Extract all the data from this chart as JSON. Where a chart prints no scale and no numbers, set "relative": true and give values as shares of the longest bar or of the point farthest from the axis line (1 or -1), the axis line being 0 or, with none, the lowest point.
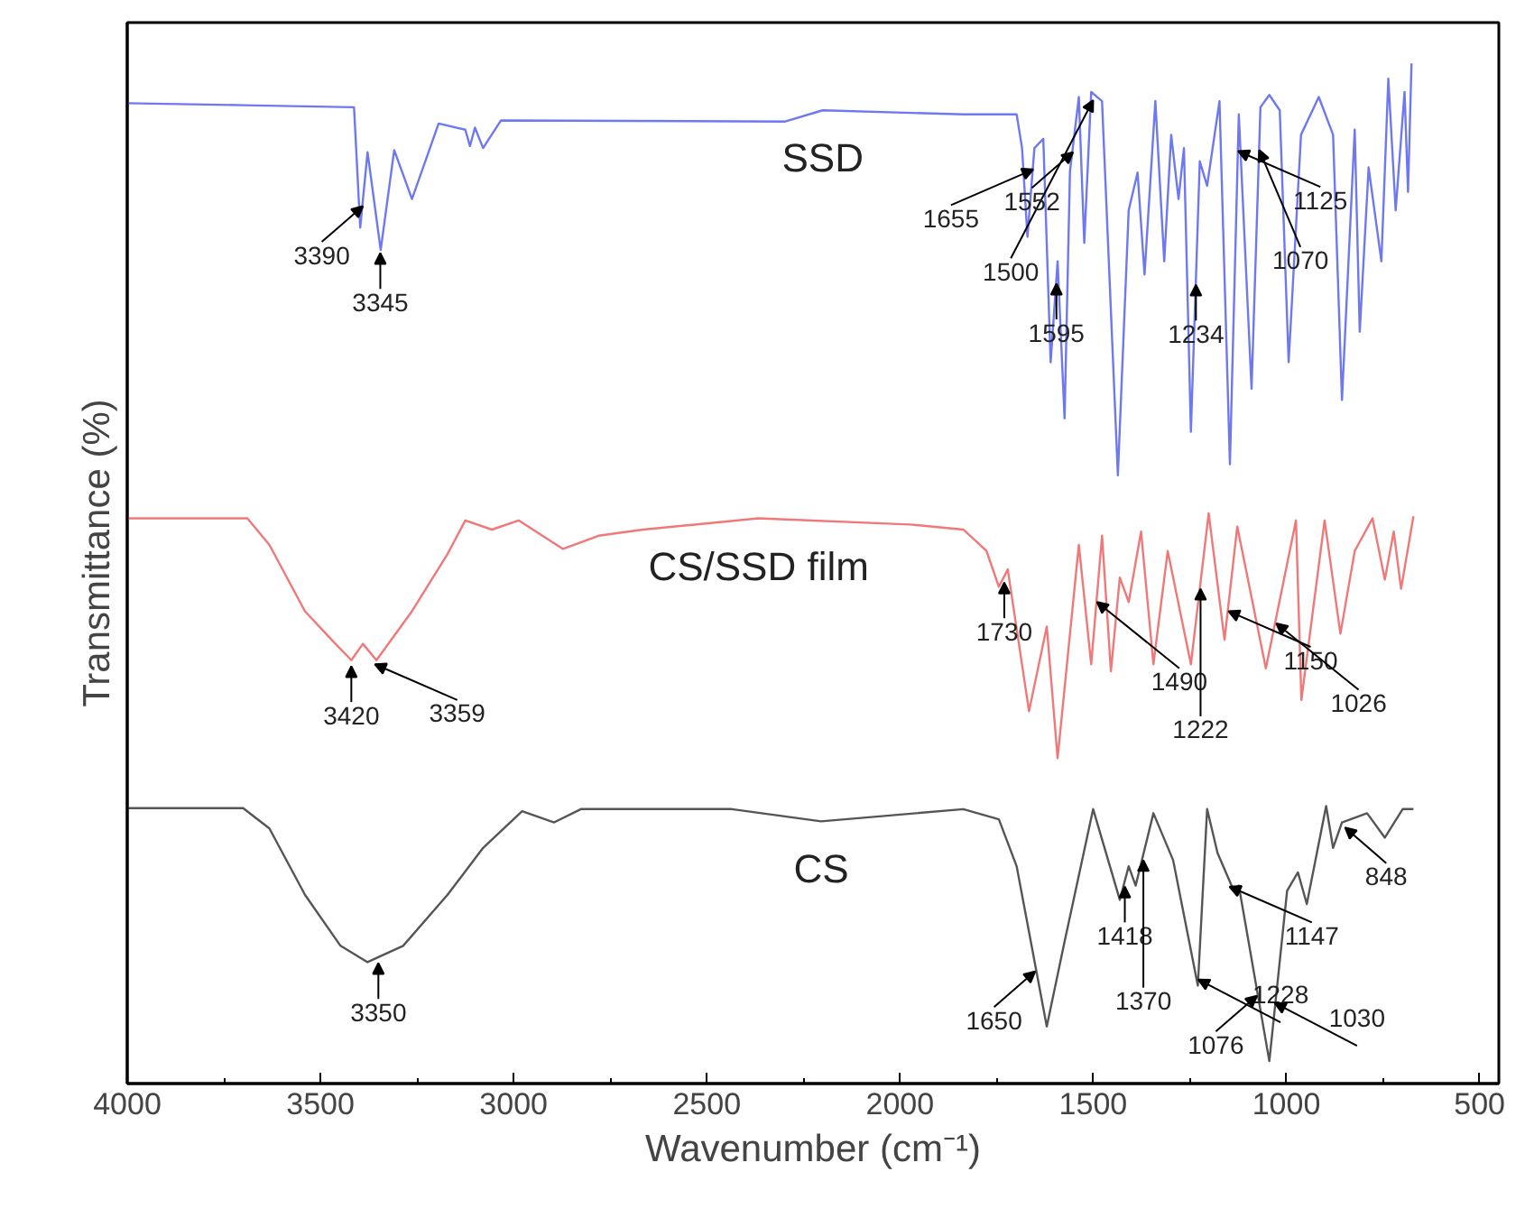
{
  "chart_data": {
    "type": "line",
    "relative": true,
    "xlabel": "Wavenumber (cm⁻¹)",
    "ylabel": "Transmittance (%)",
    "xlim": [
      4000,
      450
    ],
    "xticks": [
      4000,
      3500,
      3000,
      2500,
      2000,
      1500,
      1000,
      500
    ],
    "grid": false,
    "marker": "none",
    "line_style": "solid",
    "series": [
      {
        "name": "SSD",
        "color": "#6e78f0",
        "x": [
          4000,
          3700,
          3413,
          3397,
          3378,
          3344,
          3309,
          3263,
          3194,
          3125,
          3113,
          3100,
          3079,
          3033,
          2297,
          2200,
          1836,
          1698,
          1684,
          1670,
          1652,
          1629,
          1610,
          1592,
          1574,
          1560,
          1537,
          1523,
          1505,
          1477,
          1436,
          1408,
          1385,
          1367,
          1339,
          1316,
          1298,
          1279,
          1265,
          1247,
          1224,
          1205,
          1173,
          1146,
          1123,
          1090,
          1067,
          1044,
          1017,
          994,
          962,
          916,
          879,
          856,
          823,
          810,
          787,
          754,
          736,
          717,
          694,
          685,
          676
        ],
        "values": [
          0.961,
          0.959,
          0.957,
          0.839,
          0.913,
          0.817,
          0.915,
          0.867,
          0.941,
          0.935,
          0.919,
          0.937,
          0.917,
          0.944,
          0.943,
          0.954,
          0.95,
          0.95,
          0.917,
          0.83,
          0.917,
          0.926,
          0.707,
          0.806,
          0.652,
          0.894,
          0.967,
          0.824,
          0.972,
          0.963,
          0.596,
          0.856,
          0.893,
          0.793,
          0.963,
          0.806,
          0.93,
          0.867,
          0.917,
          0.639,
          0.904,
          0.88,
          0.963,
          0.607,
          0.95,
          0.681,
          0.957,
          0.969,
          0.954,
          0.707,
          0.93,
          0.967,
          0.93,
          0.67,
          0.935,
          0.737,
          0.898,
          0.806,
          0.985,
          0.856,
          0.972,
          0.874,
          1.0
        ]
      },
      {
        "name": "CS/SSD film",
        "color": "#f07878",
        "x": [
          4000,
          3689,
          3632,
          3540,
          3471,
          3420,
          3390,
          3355,
          3263,
          3171,
          3125,
          3056,
          2987,
          2872,
          2780,
          2665,
          2366,
          1974,
          1836,
          1776,
          1744,
          1721,
          1666,
          1620,
          1592,
          1537,
          1505,
          1477,
          1454,
          1431,
          1408,
          1376,
          1344,
          1307,
          1247,
          1201,
          1160,
          1127,
          1053,
          975,
          961,
          901,
          860,
          823,
          777,
          745,
          722,
          703,
          671
        ],
        "values": [
          0.554,
          0.554,
          0.528,
          0.463,
          0.435,
          0.415,
          0.431,
          0.415,
          0.463,
          0.519,
          0.552,
          0.543,
          0.552,
          0.524,
          0.537,
          0.543,
          0.554,
          0.548,
          0.543,
          0.522,
          0.487,
          0.504,
          0.365,
          0.448,
          0.319,
          0.528,
          0.411,
          0.537,
          0.404,
          0.496,
          0.472,
          0.541,
          0.411,
          0.522,
          0.411,
          0.559,
          0.435,
          0.546,
          0.407,
          0.552,
          0.376,
          0.552,
          0.441,
          0.522,
          0.554,
          0.494,
          0.541,
          0.485,
          0.556
        ]
      },
      {
        "name": "CS",
        "color": "#555555",
        "x": [
          4000,
          3700,
          3632,
          3540,
          3448,
          3378,
          3286,
          3171,
          3079,
          2978,
          2895,
          2826,
          2435,
          2204,
          1836,
          1744,
          1698,
          1620,
          1574,
          1500,
          1431,
          1408,
          1390,
          1344,
          1293,
          1229,
          1205,
          1178,
          1136,
          1123,
          1044,
          998,
          970,
          947,
          897,
          879,
          856,
          791,
          745,
          699,
          671
        ],
        "values": [
          0.27,
          0.27,
          0.25,
          0.185,
          0.135,
          0.119,
          0.135,
          0.185,
          0.231,
          0.267,
          0.256,
          0.269,
          0.269,
          0.257,
          0.269,
          0.259,
          0.213,
          0.056,
          0.139,
          0.269,
          0.18,
          0.213,
          0.194,
          0.265,
          0.219,
          0.096,
          0.269,
          0.226,
          0.189,
          0.194,
          0.022,
          0.189,
          0.207,
          0.176,
          0.272,
          0.231,
          0.256,
          0.265,
          0.241,
          0.269,
          0.269
        ]
      }
    ],
    "annotations": [
      {
        "text": "3390",
        "x": 3390,
        "y": 0.866
      },
      {
        "text": "3345",
        "x": 3345,
        "y": 0.82
      },
      {
        "text": "1655",
        "x": 1655,
        "y": 0.902
      },
      {
        "text": "1500",
        "x": 1500,
        "y": 0.97
      },
      {
        "text": "1595",
        "x": 1595,
        "y": 0.79
      },
      {
        "text": "1552",
        "x": 1552,
        "y": 0.919
      },
      {
        "text": "1234",
        "x": 1234,
        "y": 0.789
      },
      {
        "text": "1125",
        "x": 1125,
        "y": 0.92
      },
      {
        "text": "1070",
        "x": 1070,
        "y": 0.921
      },
      {
        "text": "3420",
        "x": 3420,
        "y": 0.415
      },
      {
        "text": "3359",
        "x": 3359,
        "y": 0.417
      },
      {
        "text": "1730",
        "x": 1730,
        "y": 0.497
      },
      {
        "text": "1490",
        "x": 1490,
        "y": 0.478
      },
      {
        "text": "1222",
        "x": 1222,
        "y": 0.491
      },
      {
        "text": "1150",
        "x": 1150,
        "y": 0.469
      },
      {
        "text": "1026",
        "x": 1026,
        "y": 0.457
      },
      {
        "text": "3350",
        "x": 3350,
        "y": 0.124
      },
      {
        "text": "1650",
        "x": 1650,
        "y": 0.116
      },
      {
        "text": "1418",
        "x": 1418,
        "y": 0.199
      },
      {
        "text": "1370",
        "x": 1370,
        "y": 0.225
      },
      {
        "text": "1228",
        "x": 1228,
        "y": 0.096
      },
      {
        "text": "1147",
        "x": 1147,
        "y": 0.199
      },
      {
        "text": "1076",
        "x": 1076,
        "y": 0.092
      },
      {
        "text": "1030",
        "x": 1030,
        "y": 0.073
      },
      {
        "text": "848",
        "x": 848,
        "y": 0.257
      }
    ]
  }
}
